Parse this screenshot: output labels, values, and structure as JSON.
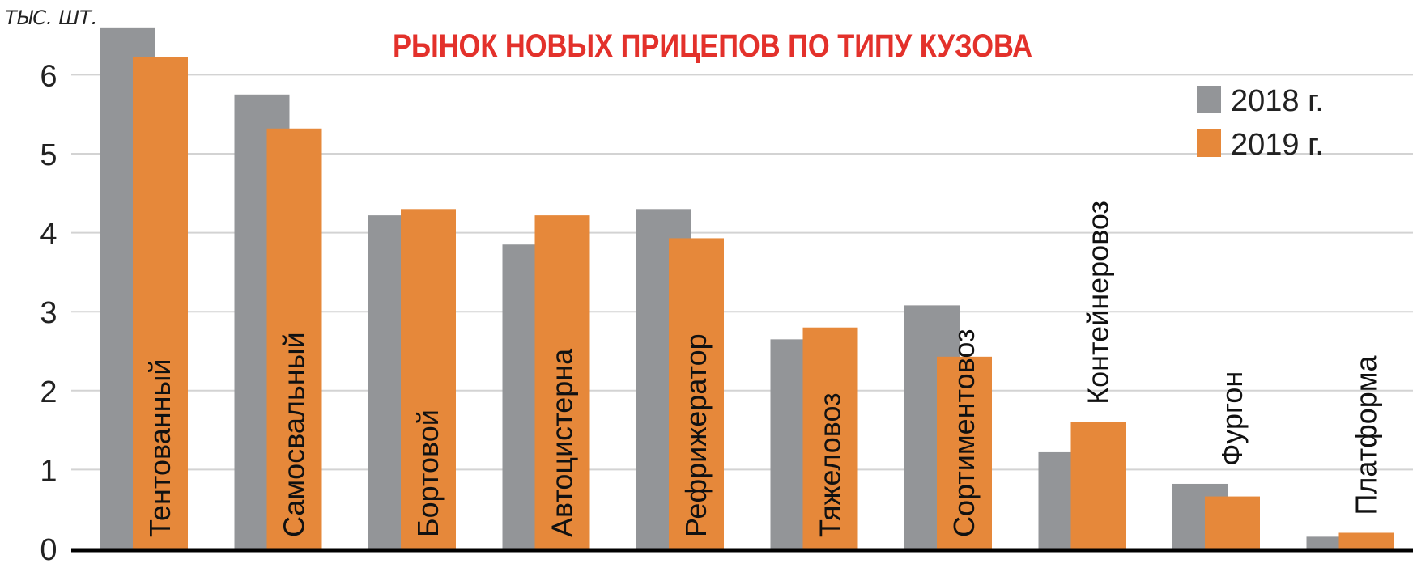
{
  "chart_data": {
    "type": "bar",
    "title": "РЫНОК НОВЫХ ПРИЦЕПОВ ПО ТИПУ КУЗОВА",
    "ylabel": "ТЫС. ШТ.",
    "ylim": [
      0,
      6.5
    ],
    "yticks": [
      0,
      1,
      2,
      3,
      4,
      5,
      6
    ],
    "grid": true,
    "legend_position": "top-right",
    "categories": [
      "Тентованный",
      "Самосвальный",
      "Бортовой",
      "Автоцистерна",
      "Рефрижератор",
      "Тяжеловоз",
      "Сортиментовоз",
      "Контейнеровоз",
      "Фургон",
      "Платформа"
    ],
    "series": [
      {
        "name": "2018 г.",
        "color": "#939598",
        "values": [
          6.6,
          5.75,
          4.22,
          3.85,
          4.3,
          2.65,
          3.08,
          1.22,
          0.82,
          0.15
        ]
      },
      {
        "name": "2019 г.",
        "color": "#e6883a",
        "values": [
          6.22,
          5.32,
          4.3,
          4.22,
          3.93,
          2.8,
          2.43,
          1.6,
          0.66,
          0.2
        ]
      }
    ]
  }
}
